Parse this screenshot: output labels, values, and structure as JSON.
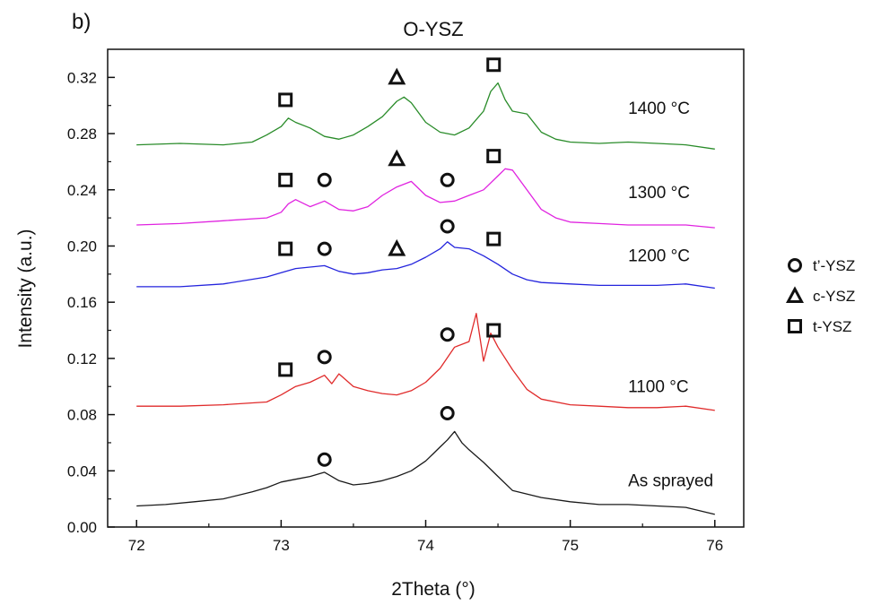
{
  "panel_label": "b)",
  "chart_data": {
    "type": "line",
    "title": "O-YSZ",
    "xlabel": "2Theta (°)",
    "ylabel": "Intensity (a.u.)",
    "xlim": [
      71.8,
      76.2
    ],
    "ylim": [
      0.0,
      0.34
    ],
    "xticks": [
      72,
      73,
      74,
      75,
      76
    ],
    "yticks": [
      0.0,
      0.04,
      0.08,
      0.12,
      0.16,
      0.2,
      0.24,
      0.28,
      0.32
    ],
    "ytick_labels": [
      "0.00",
      "0.04",
      "0.08",
      "0.12",
      "0.16",
      "0.20",
      "0.24",
      "0.28",
      "0.32"
    ],
    "grid": false,
    "legend_position": "right",
    "legend": [
      {
        "marker": "circle",
        "label": "t’-YSZ"
      },
      {
        "marker": "triangle",
        "label": "c-YSZ"
      },
      {
        "marker": "square",
        "label": "t-YSZ"
      }
    ],
    "series": [
      {
        "name": "As sprayed",
        "color": "#1a1a1a",
        "x": [
          72.0,
          72.2,
          72.4,
          72.6,
          72.8,
          72.9,
          73.0,
          73.1,
          73.2,
          73.3,
          73.4,
          73.5,
          73.6,
          73.7,
          73.8,
          73.9,
          74.0,
          74.05,
          74.1,
          74.15,
          74.2,
          74.25,
          74.3,
          74.4,
          74.5,
          74.6,
          74.8,
          75.0,
          75.2,
          75.4,
          75.6,
          75.8,
          76.0
        ],
        "y": [
          0.015,
          0.016,
          0.018,
          0.02,
          0.025,
          0.028,
          0.032,
          0.034,
          0.036,
          0.039,
          0.033,
          0.03,
          0.031,
          0.033,
          0.036,
          0.04,
          0.047,
          0.052,
          0.057,
          0.062,
          0.068,
          0.06,
          0.055,
          0.046,
          0.036,
          0.026,
          0.021,
          0.018,
          0.016,
          0.016,
          0.015,
          0.014,
          0.009
        ]
      },
      {
        "name": "1100 °C",
        "color": "#e02b2b",
        "x": [
          72.0,
          72.3,
          72.6,
          72.9,
          73.0,
          73.1,
          73.2,
          73.3,
          73.35,
          73.4,
          73.5,
          73.6,
          73.7,
          73.8,
          73.9,
          74.0,
          74.1,
          74.2,
          74.3,
          74.35,
          74.4,
          74.45,
          74.5,
          74.6,
          74.7,
          74.8,
          75.0,
          75.2,
          75.4,
          75.6,
          75.8,
          76.0
        ],
        "y": [
          0.086,
          0.086,
          0.087,
          0.089,
          0.094,
          0.1,
          0.103,
          0.108,
          0.102,
          0.109,
          0.1,
          0.097,
          0.095,
          0.094,
          0.097,
          0.103,
          0.113,
          0.128,
          0.132,
          0.152,
          0.118,
          0.138,
          0.128,
          0.112,
          0.098,
          0.091,
          0.087,
          0.086,
          0.085,
          0.085,
          0.086,
          0.083
        ]
      },
      {
        "name": "1200 °C",
        "color": "#2424dd",
        "x": [
          72.0,
          72.3,
          72.6,
          72.9,
          73.0,
          73.1,
          73.2,
          73.3,
          73.4,
          73.5,
          73.6,
          73.7,
          73.8,
          73.9,
          74.0,
          74.1,
          74.15,
          74.2,
          74.3,
          74.4,
          74.5,
          74.6,
          74.7,
          74.8,
          75.0,
          75.2,
          75.4,
          75.6,
          75.8,
          76.0
        ],
        "y": [
          0.171,
          0.171,
          0.173,
          0.178,
          0.181,
          0.184,
          0.185,
          0.186,
          0.182,
          0.18,
          0.181,
          0.183,
          0.184,
          0.187,
          0.192,
          0.198,
          0.203,
          0.199,
          0.198,
          0.193,
          0.187,
          0.18,
          0.176,
          0.174,
          0.173,
          0.172,
          0.172,
          0.172,
          0.173,
          0.17
        ]
      },
      {
        "name": "1300 °C",
        "color": "#e023e0",
        "x": [
          72.0,
          72.3,
          72.6,
          72.9,
          73.0,
          73.05,
          73.1,
          73.2,
          73.3,
          73.4,
          73.5,
          73.6,
          73.7,
          73.8,
          73.9,
          74.0,
          74.1,
          74.2,
          74.3,
          74.4,
          74.5,
          74.55,
          74.6,
          74.7,
          74.8,
          74.9,
          75.0,
          75.2,
          75.4,
          75.6,
          75.8,
          76.0
        ],
        "y": [
          0.215,
          0.216,
          0.218,
          0.22,
          0.224,
          0.23,
          0.233,
          0.228,
          0.232,
          0.226,
          0.225,
          0.228,
          0.236,
          0.242,
          0.246,
          0.236,
          0.231,
          0.232,
          0.236,
          0.24,
          0.25,
          0.255,
          0.254,
          0.24,
          0.226,
          0.22,
          0.217,
          0.216,
          0.215,
          0.215,
          0.215,
          0.213
        ]
      },
      {
        "name": "1400 °C",
        "color": "#2a8c2a",
        "x": [
          72.0,
          72.3,
          72.6,
          72.8,
          72.9,
          73.0,
          73.05,
          73.1,
          73.2,
          73.3,
          73.4,
          73.5,
          73.6,
          73.7,
          73.8,
          73.85,
          73.9,
          74.0,
          74.1,
          74.2,
          74.3,
          74.4,
          74.45,
          74.5,
          74.55,
          74.6,
          74.7,
          74.8,
          74.9,
          75.0,
          75.2,
          75.4,
          75.6,
          75.8,
          76.0
        ],
        "y": [
          0.272,
          0.273,
          0.272,
          0.274,
          0.279,
          0.285,
          0.291,
          0.288,
          0.284,
          0.278,
          0.276,
          0.279,
          0.285,
          0.292,
          0.303,
          0.306,
          0.302,
          0.288,
          0.281,
          0.279,
          0.284,
          0.296,
          0.31,
          0.316,
          0.304,
          0.296,
          0.294,
          0.281,
          0.276,
          0.274,
          0.273,
          0.274,
          0.273,
          0.272,
          0.269
        ]
      }
    ],
    "curve_labels": [
      {
        "text": "1400 °C",
        "x": 75.4,
        "y": 0.294
      },
      {
        "text": "1300 °C",
        "x": 75.4,
        "y": 0.234
      },
      {
        "text": "1200 °C",
        "x": 75.4,
        "y": 0.189
      },
      {
        "text": "1100 °C",
        "x": 75.4,
        "y": 0.096
      },
      {
        "text": "As sprayed",
        "x": 75.4,
        "y": 0.029
      }
    ],
    "phase_markers": [
      {
        "shape": "square",
        "x": 73.03,
        "y": 0.304
      },
      {
        "shape": "triangle",
        "x": 73.8,
        "y": 0.32
      },
      {
        "shape": "square",
        "x": 74.47,
        "y": 0.329
      },
      {
        "shape": "square",
        "x": 73.03,
        "y": 0.247
      },
      {
        "shape": "circle",
        "x": 73.3,
        "y": 0.247
      },
      {
        "shape": "triangle",
        "x": 73.8,
        "y": 0.262
      },
      {
        "shape": "circle",
        "x": 74.15,
        "y": 0.247
      },
      {
        "shape": "square",
        "x": 74.47,
        "y": 0.264
      },
      {
        "shape": "square",
        "x": 73.03,
        "y": 0.198
      },
      {
        "shape": "circle",
        "x": 73.3,
        "y": 0.198
      },
      {
        "shape": "triangle",
        "x": 73.8,
        "y": 0.198
      },
      {
        "shape": "circle",
        "x": 74.15,
        "y": 0.214
      },
      {
        "shape": "square",
        "x": 74.47,
        "y": 0.205
      },
      {
        "shape": "square",
        "x": 73.03,
        "y": 0.112
      },
      {
        "shape": "circle",
        "x": 73.3,
        "y": 0.121
      },
      {
        "shape": "circle",
        "x": 74.15,
        "y": 0.137
      },
      {
        "shape": "square",
        "x": 74.47,
        "y": 0.14
      },
      {
        "shape": "circle",
        "x": 73.3,
        "y": 0.048
      },
      {
        "shape": "circle",
        "x": 74.15,
        "y": 0.081
      }
    ]
  }
}
